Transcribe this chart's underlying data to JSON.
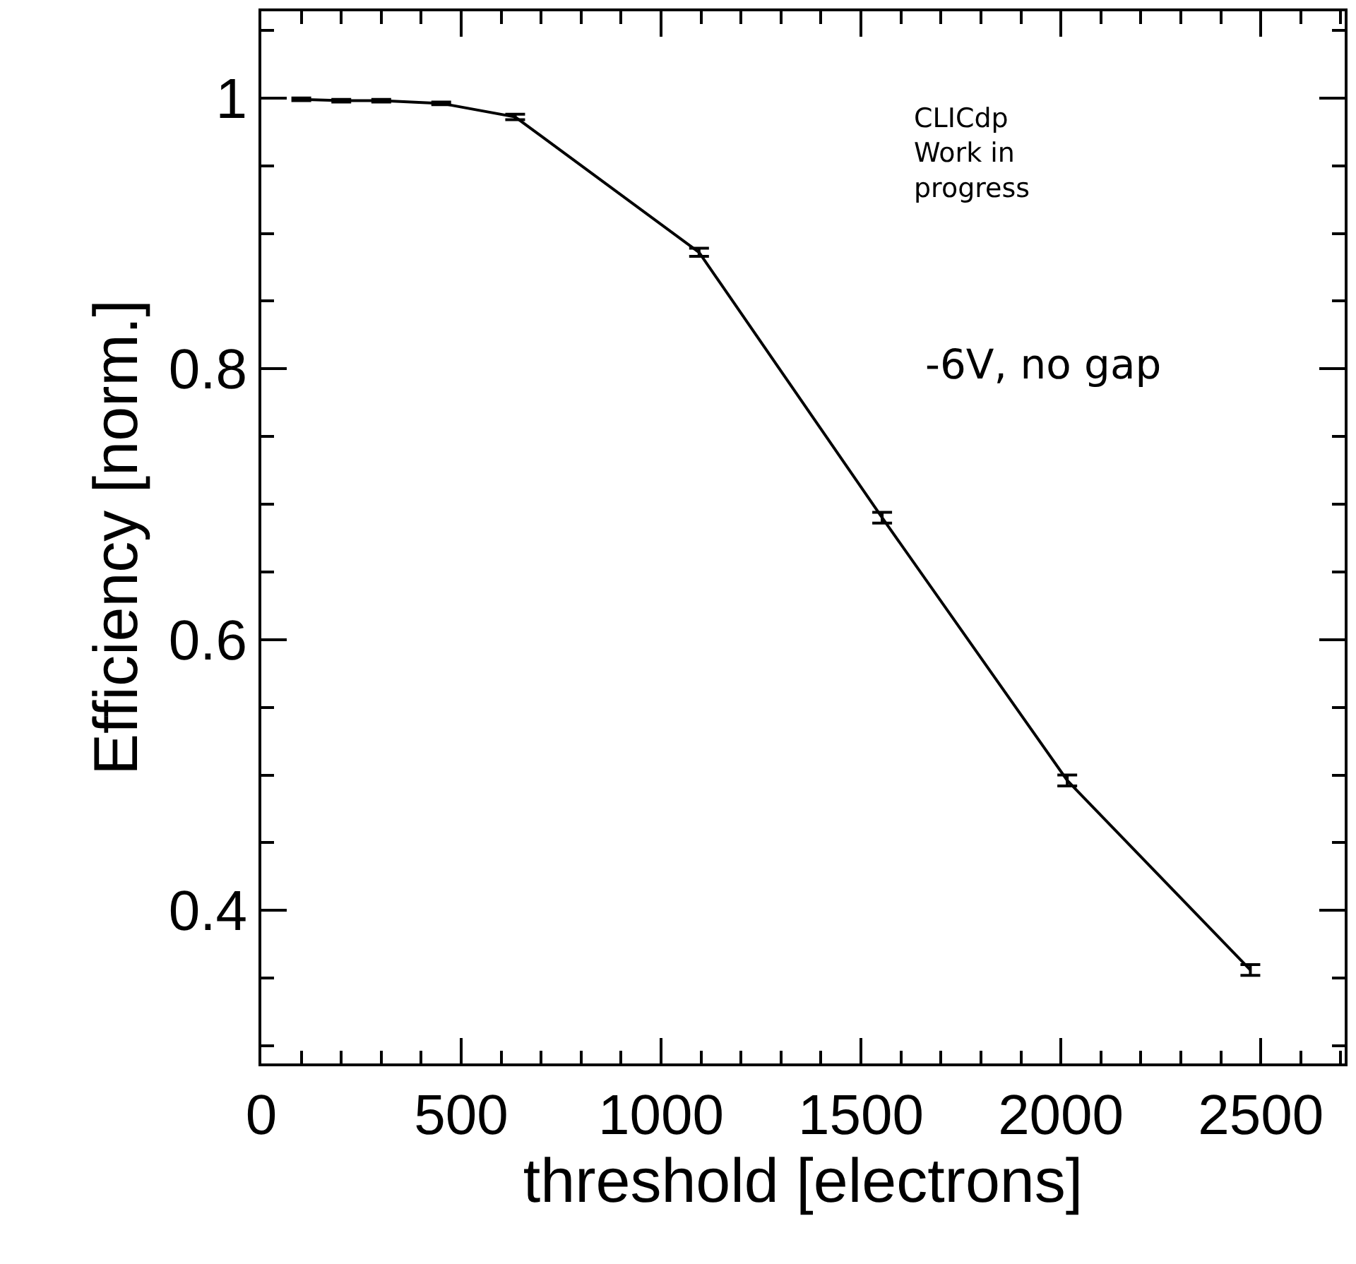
{
  "chart_data": {
    "type": "line",
    "xlabel": "threshold [electrons]",
    "ylabel": "Efficiency [norm.]",
    "x": [
      100,
      200,
      300,
      450,
      635,
      1095,
      1553,
      2016,
      2474
    ],
    "series": [
      {
        "color": "#000000",
        "values": [
          0.999,
          0.998,
          0.998,
          0.996,
          0.986,
          0.886,
          0.69,
          0.496,
          0.356
        ],
        "errors": [
          0.001,
          0.001,
          0.001,
          0.001,
          0.002,
          0.003,
          0.004,
          0.004,
          0.004
        ]
      }
    ],
    "xlim": [
      0,
      2710
    ],
    "ylim": [
      0.287,
      1.064
    ],
    "xticks": [
      0,
      {
        "value": 100,
        "label": null
      },
      {
        "value": 200,
        "label": null
      },
      {
        "value": 300,
        "label": null
      },
      {
        "value": 400,
        "label": null
      },
      500,
      {
        "value": 600,
        "label": null
      },
      {
        "value": 700,
        "label": null
      },
      {
        "value": 800,
        "label": null
      },
      {
        "value": 900,
        "label": null
      },
      1000,
      {
        "value": 1100,
        "label": null
      },
      {
        "value": 1200,
        "label": null
      },
      {
        "value": 1300,
        "label": null
      },
      {
        "value": 1400,
        "label": null
      },
      1500,
      {
        "value": 1600,
        "label": null
      },
      {
        "value": 1700,
        "label": null
      },
      {
        "value": 1800,
        "label": null
      },
      {
        "value": 1900,
        "label": null
      },
      2000,
      {
        "value": 2100,
        "label": null
      },
      {
        "value": 2200,
        "label": null
      },
      {
        "value": 2300,
        "label": null
      },
      {
        "value": 2400,
        "label": null
      },
      2500,
      {
        "value": 2600,
        "label": null
      },
      {
        "value": 2700,
        "label": null
      }
    ],
    "yticks": [
      {
        "value": 0.3,
        "label": null
      },
      {
        "value": 0.35,
        "label": null
      },
      0.4,
      {
        "value": 0.45,
        "label": null
      },
      {
        "value": 0.5,
        "label": null
      },
      {
        "value": 0.55,
        "label": null
      },
      0.6,
      {
        "value": 0.65,
        "label": null
      },
      {
        "value": 0.7,
        "label": null
      },
      {
        "value": 0.75,
        "label": null
      },
      0.8,
      {
        "value": 0.85,
        "label": null
      },
      {
        "value": 0.9,
        "label": null
      },
      {
        "value": 0.95,
        "label": null
      },
      1,
      {
        "value": 1.05,
        "label": null
      }
    ],
    "annotations": [
      "CLICdp\nWork in\nprogress",
      "-6V, no gap"
    ],
    "marker": "none",
    "line_style": "solid"
  }
}
